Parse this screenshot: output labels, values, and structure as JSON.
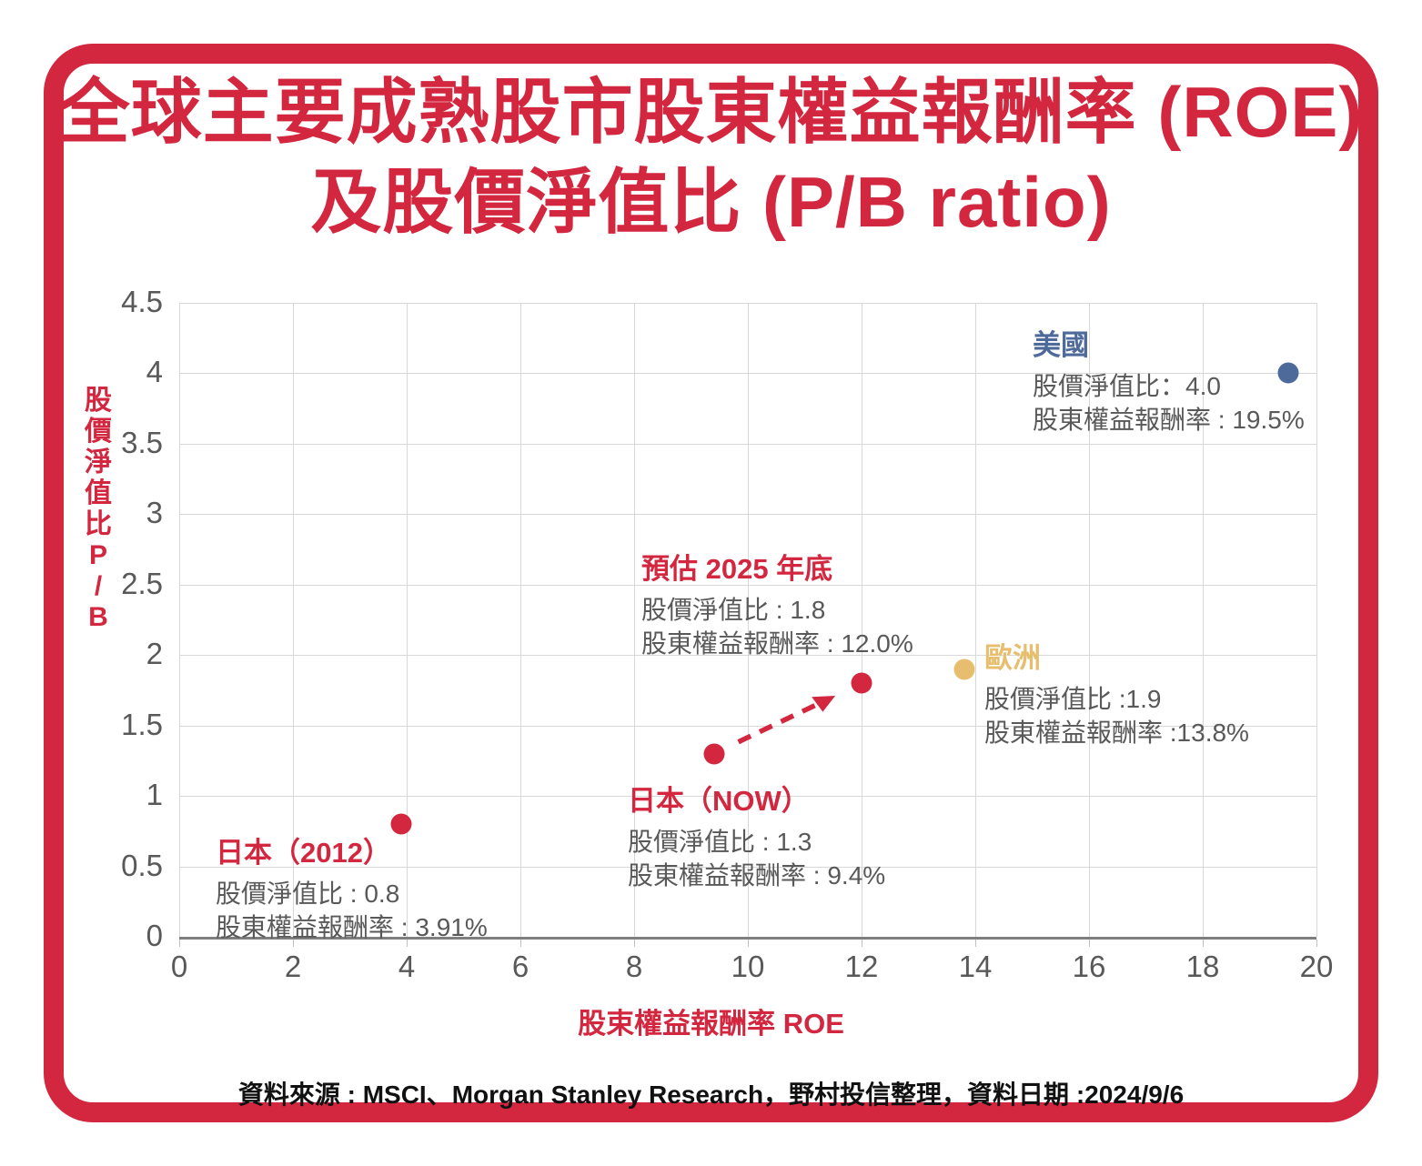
{
  "title": {
    "line1": "全球主要成熟股市股東權益報酬率 (ROE)",
    "line2": "及股價淨值比 (P/B ratio)"
  },
  "colors": {
    "red": "#D32740",
    "blue": "#4E6A9B",
    "gold": "#E7BE6D",
    "gray_text": "#595959",
    "grid": "#D8D8D8",
    "axis": "#7F7F7F"
  },
  "chart_data": {
    "type": "scatter",
    "xlabel": "股束權益報酬率 ROE",
    "ylabel": "股價淨值比P/B",
    "xlim": [
      0,
      20
    ],
    "ylim": [
      0,
      4.5
    ],
    "grid": true,
    "x_ticks": [
      "0",
      "2",
      "4",
      "6",
      "8",
      "10",
      "12",
      "14",
      "16",
      "18",
      "20"
    ],
    "y_ticks": [
      "0",
      "0.5",
      "1",
      "1.5",
      "2",
      "2.5",
      "3",
      "3.5",
      "4",
      "4.5"
    ],
    "points": [
      {
        "id": "japan_2012",
        "name": "日本（2012）",
        "x": 3.91,
        "y": 0.8,
        "dot_color": "#D32740",
        "name_color": "#D32740",
        "line1": "股價淨值比 : 0.8",
        "line2": "股東權益報酬率 : 3.91%"
      },
      {
        "id": "japan_now",
        "name": "日本（NOW）",
        "x": 9.4,
        "y": 1.3,
        "dot_color": "#D32740",
        "name_color": "#D32740",
        "line1": "股價淨值比 : 1.3",
        "line2": "股東權益報酬率 : 9.4%"
      },
      {
        "id": "est_2025",
        "name": "預估 2025 年底",
        "x": 12.0,
        "y": 1.8,
        "dot_color": "#D32740",
        "name_color": "#D32740",
        "line1": "股價淨值比 : 1.8",
        "line2": "股東權益報酬率 : 12.0%"
      },
      {
        "id": "europe",
        "name": "歐洲",
        "x": 13.8,
        "y": 1.9,
        "dot_color": "#E7BE6D",
        "name_color": "#E7BE6D",
        "line1": "股價淨值比 :1.9",
        "line2": "股東權益報酬率 :13.8%"
      },
      {
        "id": "us",
        "name": "美國",
        "x": 19.5,
        "y": 4.0,
        "dot_color": "#4E6A9B",
        "name_color": "#4E6A9B",
        "line1": "股價淨值比：4.0",
        "line2": "股東權益報酬率 : 19.5%"
      }
    ],
    "arrow": {
      "from": "japan_now",
      "to": "est_2025",
      "color": "#D32740",
      "style": "dashed"
    }
  },
  "source": "資料來源 : MSCI、Morgan Stanley Research，野村投信整理，資料日期 :2024/9/6"
}
